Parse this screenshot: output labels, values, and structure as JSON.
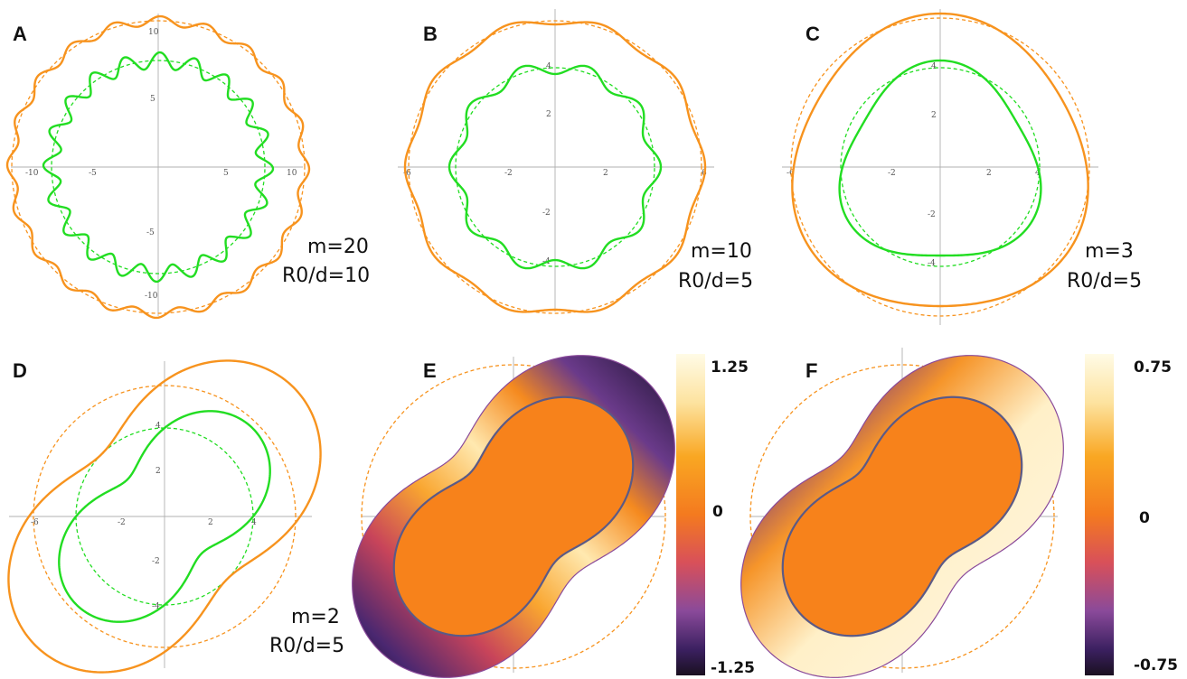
{
  "panels": [
    {
      "letter": "A",
      "m": 20,
      "ratio": 10,
      "param_line1": "m=20",
      "param_line2": "R0/d=10",
      "ticks": {
        "xneg": "-10",
        "xneg2": "-5",
        "xpos2": "5",
        "xpos": "10",
        "ypos": "10",
        "ypos2": "5",
        "yneg2": "-5",
        "yneg": "-10"
      }
    },
    {
      "letter": "B",
      "m": 10,
      "ratio": 5,
      "param_line1": "m=10",
      "param_line2": "R0/d=5",
      "ticks": {
        "xneg": "-6",
        "xneg2": "-2",
        "xpos2": "2",
        "xpos": "6",
        "ypos": "4",
        "ypos2": "2",
        "yneg2": "-2",
        "yneg": "-4"
      }
    },
    {
      "letter": "C",
      "m": 3,
      "ratio": 5,
      "param_line1": "m=3",
      "param_line2": "R0/d=5",
      "ticks": {
        "xneg": "-6",
        "xneg2": "-2",
        "xpos2": "2",
        "xpos": "4",
        "ypos": "4",
        "ypos2": "2",
        "yneg2": "-2",
        "yneg": "-4"
      }
    },
    {
      "letter": "D",
      "m": 2,
      "ratio": 5,
      "param_line1": "m=2",
      "param_line2": "R0/d=5",
      "ticks": {
        "xneg": "-6",
        "xneg2": "-2",
        "xpos2": "2",
        "xpos": "4",
        "ypos": "4",
        "ypos2": "2",
        "yneg2": "-2",
        "yneg": "-4"
      }
    },
    {
      "letter": "E",
      "colorbar": {
        "max": "1.25",
        "mid": "0",
        "min": "-1.25"
      }
    },
    {
      "letter": "F",
      "colorbar": {
        "max": "0.75",
        "mid": "0",
        "min": "-0.75"
      }
    }
  ],
  "colors": {
    "outer": "#f7931e",
    "inner": "#22dd22",
    "fill": "#f7821b",
    "boundary": "#5b5a86"
  }
}
